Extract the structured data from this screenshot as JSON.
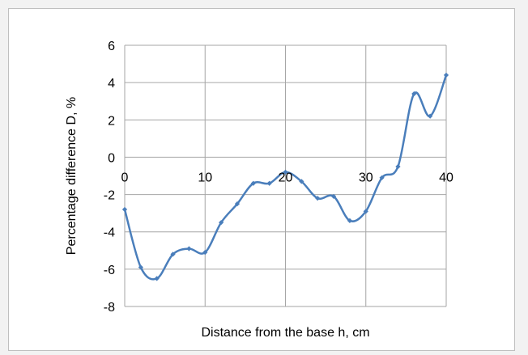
{
  "chart_data": {
    "type": "line",
    "title": "",
    "xlabel": "Distance from the base h, cm",
    "ylabel": "Percentage difference D, %",
    "xlim": [
      0,
      40
    ],
    "ylim": [
      -8,
      6
    ],
    "x_ticks": [
      0,
      10,
      20,
      30,
      40
    ],
    "y_ticks": [
      -8,
      -6,
      -4,
      -2,
      0,
      2,
      4,
      6
    ],
    "grid": true,
    "legend": "none",
    "series_color": "#4a7ebb",
    "series": [
      {
        "x": [
          0,
          2,
          4,
          6,
          8,
          10,
          12,
          14,
          16,
          18,
          20,
          22,
          24,
          26,
          28,
          30,
          32,
          34,
          36,
          38,
          40
        ],
        "values": [
          -2.8,
          -5.9,
          -6.5,
          -5.2,
          -4.9,
          -5.1,
          -3.5,
          -2.5,
          -1.4,
          -1.4,
          -0.8,
          -1.3,
          -2.2,
          -2.1,
          -3.4,
          -2.9,
          -1.1,
          -0.5,
          3.4,
          2.2,
          4.4
        ]
      }
    ]
  }
}
